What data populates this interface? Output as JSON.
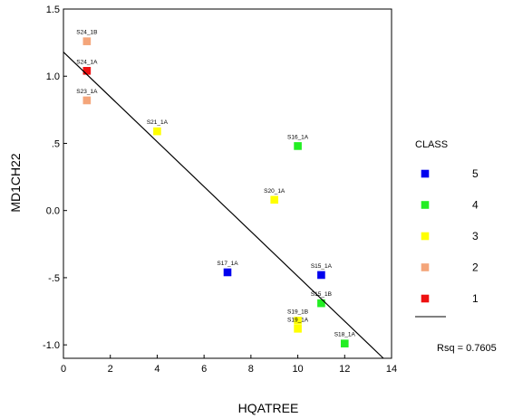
{
  "chart_data": {
    "type": "scatter",
    "xlabel": "HQATREE",
    "ylabel": "MD1CH22",
    "xlim": [
      0,
      14
    ],
    "ylim": [
      -1.1,
      1.5
    ],
    "x_ticks": [
      {
        "value": 0,
        "label": "0"
      },
      {
        "value": 2,
        "label": "2"
      },
      {
        "value": 4,
        "label": "4"
      },
      {
        "value": 6,
        "label": "6"
      },
      {
        "value": 8,
        "label": "8"
      },
      {
        "value": 10,
        "label": "10"
      },
      {
        "value": 12,
        "label": "12"
      },
      {
        "value": 14,
        "label": "14"
      }
    ],
    "y_ticks": [
      {
        "value": 1.5,
        "label": "1.5"
      },
      {
        "value": 1.0,
        "label": "1.0"
      },
      {
        "value": 0.5,
        "label": ".5"
      },
      {
        "value": 0.0,
        "label": "0.0"
      },
      {
        "value": -0.5,
        "label": "-.5"
      },
      {
        "value": -1.0,
        "label": "-1.0"
      }
    ],
    "grid": false,
    "legend": {
      "title": "CLASS",
      "placement": "right",
      "fit_line_label": "Rsq = 0.7605"
    },
    "series": [
      {
        "name": "5",
        "color": "#0000ee",
        "points": [
          {
            "x": 7,
            "y": -0.46,
            "label": "S17_1A"
          },
          {
            "x": 11,
            "y": -0.48,
            "label": "S15_1A"
          }
        ]
      },
      {
        "name": "4",
        "color": "#22ee22",
        "points": [
          {
            "x": 10,
            "y": 0.48,
            "label": "S16_1A"
          },
          {
            "x": 11,
            "y": -0.69,
            "label": "S15_1B"
          },
          {
            "x": 12,
            "y": -0.99,
            "label": "S18_1A"
          }
        ]
      },
      {
        "name": "3",
        "color": "#ffff00",
        "points": [
          {
            "x": 4,
            "y": 0.59,
            "label": "S21_1A"
          },
          {
            "x": 9,
            "y": 0.08,
            "label": "S20_1A"
          },
          {
            "x": 10,
            "y": -0.82,
            "label": "S19_1B"
          },
          {
            "x": 10,
            "y": -0.88,
            "label": "S19_1A"
          }
        ]
      },
      {
        "name": "2",
        "color": "#f4a57a",
        "points": [
          {
            "x": 1,
            "y": 1.26,
            "label": "S24_1B"
          },
          {
            "x": 1,
            "y": 0.82,
            "label": "S23_1A"
          }
        ]
      },
      {
        "name": "1",
        "color": "#ee1111",
        "points": [
          {
            "x": 1,
            "y": 1.04,
            "label": "S24_1A"
          }
        ]
      }
    ],
    "fit_line": {
      "intercept": 1.18,
      "slope": -0.167
    }
  }
}
